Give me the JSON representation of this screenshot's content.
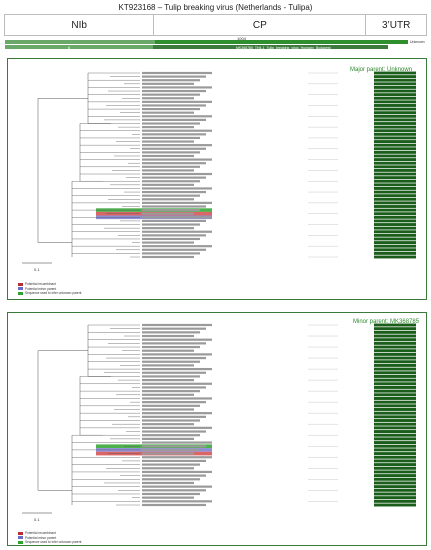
{
  "title": "KT923168 – Tulip breaking virus (Netherlands - Tulipa)",
  "regions": [
    "NIb",
    "CP",
    "3’UTR"
  ],
  "scale_tick": "1004",
  "bars": {
    "unknown_label": "Unknown",
    "minor_label": "MK368785_TH4-1_Tulip_breaking_virus_Hungary_Budapest",
    "segment_number": "6"
  },
  "panels": [
    {
      "parent_title": "Major parent: Unknown",
      "scalebar_label": "0.1",
      "tip_count": 52,
      "highlight_indices": [
        38,
        39,
        40
      ],
      "highlight_colors": [
        "#2ea42e",
        "#d44b4b",
        "#7a7ad0"
      ],
      "legend": [
        {
          "label": "Potential recombinant",
          "color": "#b33030"
        },
        {
          "label": "Potential minor parent",
          "color": "#6a6ac8"
        },
        {
          "label": "Sequence used to infer unknown parent",
          "color": "#2ea42e"
        }
      ]
    },
    {
      "parent_title": "Minor parent: MK368785",
      "scalebar_label": "0.1",
      "tip_count": 50,
      "highlight_indices": [
        33,
        34,
        35
      ],
      "highlight_colors": [
        "#2ea42e",
        "#7a7ad0",
        "#d44b4b"
      ],
      "legend": [
        {
          "label": "Potential recombinant",
          "color": "#b33030"
        },
        {
          "label": "Potential minor parent",
          "color": "#6a6ac8"
        },
        {
          "label": "Sequence used to infer unknown parent",
          "color": "#2ea42e"
        }
      ]
    }
  ],
  "colors": {
    "dark_green": "#1b5e1b",
    "mid_green": "#4f8f4f",
    "bright_green": "#2f9e2f",
    "light_green": "#6aa86a"
  }
}
